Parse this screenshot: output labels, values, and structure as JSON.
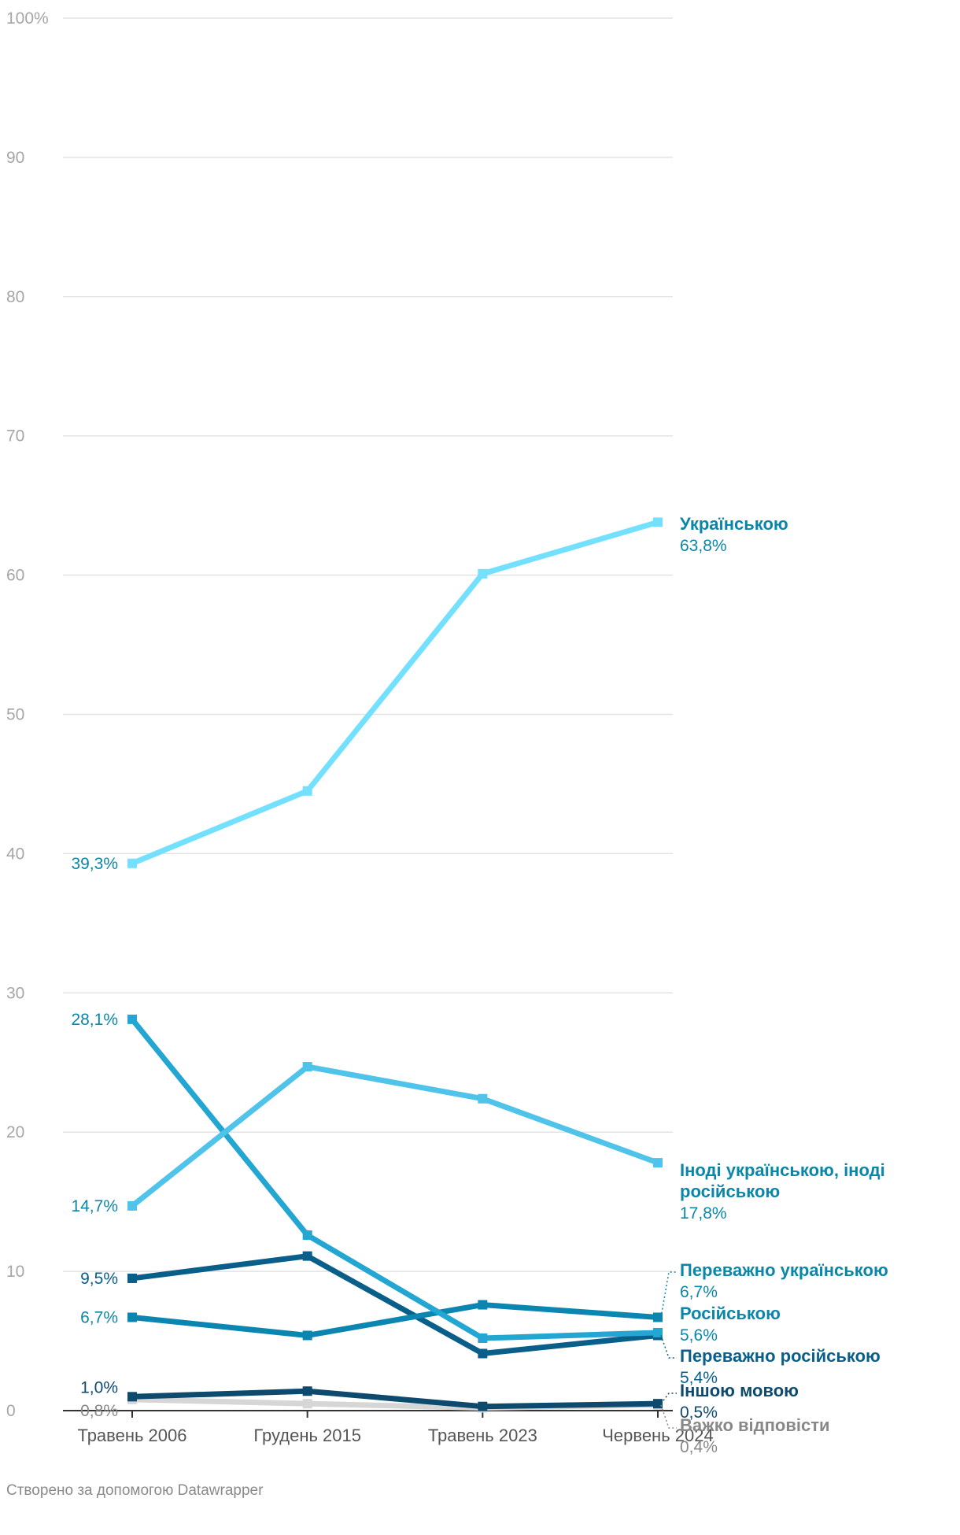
{
  "chart_data": {
    "type": "line",
    "title": "",
    "xlabel": "",
    "ylabel": "",
    "ylim": [
      0,
      100
    ],
    "y_ticks": [
      0,
      10,
      20,
      30,
      40,
      50,
      60,
      70,
      80,
      90,
      100
    ],
    "y_tick_labels": [
      "0",
      "10",
      "20",
      "30",
      "40",
      "50",
      "60",
      "70",
      "80",
      "90",
      "100%"
    ],
    "grid": true,
    "categories": [
      "Травень 2006",
      "Грудень 2015",
      "Травень 2023",
      "Червень 2024"
    ],
    "series": [
      {
        "name": "Українською",
        "values": [
          39.3,
          44.5,
          60.1,
          63.8
        ],
        "color": "#73e0ff",
        "start_label": "39,3%",
        "end_label": "63,8%",
        "label_color": "#0b86a8"
      },
      {
        "name": "Іноді українською, іноді російською",
        "values": [
          14.7,
          24.7,
          22.4,
          17.8
        ],
        "color": "#4fc3ea",
        "start_label": "14,7%",
        "end_label": "17,8%",
        "label_color": "#0b86a8"
      },
      {
        "name": "Переважно українською",
        "values": [
          6.7,
          5.4,
          7.6,
          6.7
        ],
        "color": "#0b86b0",
        "start_label": "6,7%",
        "end_label": "6,7%",
        "label_color": "#0b86a8"
      },
      {
        "name": "Російською",
        "values": [
          28.1,
          12.6,
          5.2,
          5.6
        ],
        "color": "#23a6d2",
        "start_label": "28,1%",
        "end_label": "5,6%",
        "label_color": "#0b86a8"
      },
      {
        "name": "Переважно російською",
        "values": [
          9.5,
          11.1,
          4.1,
          5.4
        ],
        "color": "#0a5f8a",
        "start_label": "9,5%",
        "end_label": "5,4%",
        "label_color": "#0a5f8a"
      },
      {
        "name": "Іншою мовою",
        "values": [
          1.0,
          1.4,
          0.3,
          0.5
        ],
        "color": "#0d4a6e",
        "start_label": "1,0%",
        "end_label": "0,5%",
        "label_color": "#0d4a6e"
      },
      {
        "name": "Важко відповісти",
        "values": [
          0.8,
          0.5,
          0.2,
          0.4
        ],
        "color": "#d6d6d6",
        "start_label": "0,8%",
        "end_label": "0,4%",
        "label_color": "#888888"
      }
    ]
  },
  "credit": "Створено за допомогою Datawrapper"
}
